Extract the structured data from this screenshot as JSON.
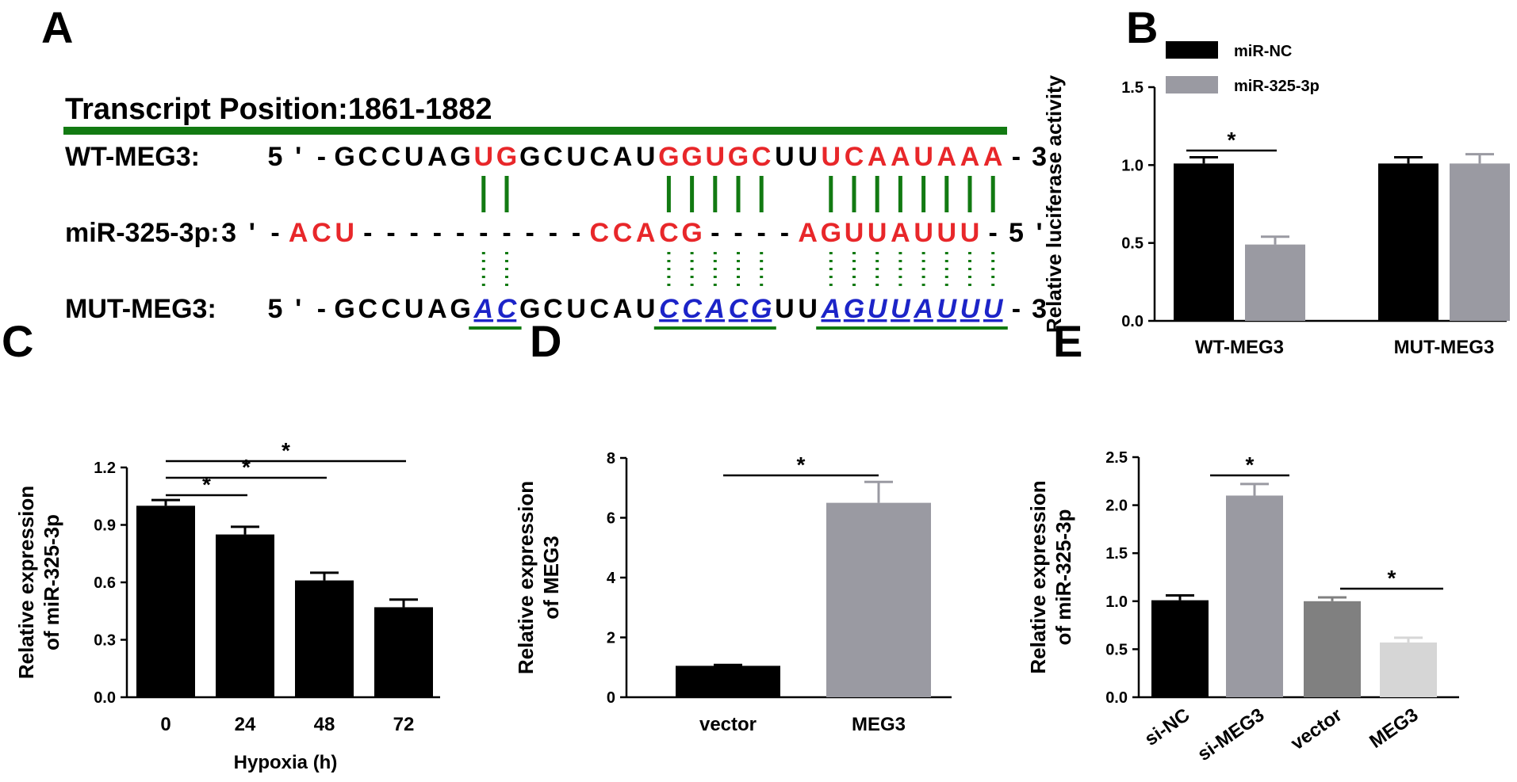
{
  "panels": {
    "a": "A",
    "b": "B",
    "c": "C",
    "d": "D",
    "e": "E"
  },
  "colors": {
    "red": "#e8272a",
    "blue": "#1c24c8",
    "green": "#127a12",
    "black": "#000000",
    "gray": "#9a9aa2",
    "darkgray": "#808080",
    "lightgray": "#d6d6d6"
  },
  "sequence": {
    "title": "Transcript Position:1861-1882",
    "wt": {
      "label": "WT-MEG3:",
      "text": "5'-GCCUAGUGGCUCAUGGUGCUUUCAAUAAA-3'"
    },
    "mir": {
      "label": "miR-325-3p:",
      "text": "3'-ACU----------CCACG----AGUUAUUU-5'"
    },
    "mut": {
      "label": "MUT-MEG3:",
      "text": "5'-GCCUAGACGCUCAUCCACGUUAGUUAUUU-3'"
    }
  },
  "chart_data": [
    {
      "panel": "B",
      "type": "bar",
      "categories": [
        "WT-MEG3",
        "MUT-MEG3"
      ],
      "series": [
        {
          "name": "miR-NC",
          "values": [
            1.01,
            1.01
          ],
          "errors": [
            0.04,
            0.04
          ]
        },
        {
          "name": "miR-325-3p",
          "values": [
            0.49,
            1.01
          ],
          "errors": [
            0.05,
            0.06
          ]
        }
      ],
      "xlabel": "",
      "ylabel": "Relative luciferase activity",
      "ylim": [
        0,
        1.5
      ],
      "yticks": [
        "0.0",
        "0.5",
        "1.0",
        "1.5"
      ],
      "legend": "top-left",
      "significance": "*"
    },
    {
      "panel": "C",
      "type": "bar",
      "categories": [
        "0",
        "24",
        "48",
        "72"
      ],
      "values": [
        1.0,
        0.85,
        0.61,
        0.47
      ],
      "errors": [
        0.03,
        0.04,
        0.04,
        0.04
      ],
      "xlabel": "Hypoxia (h)",
      "ylabel": "Relative expression of miR-325-3p",
      "ylim": [
        0,
        1.2
      ],
      "yticks": [
        "0.0",
        "0.3",
        "0.6",
        "0.9",
        "1.2"
      ],
      "significance": "*"
    },
    {
      "panel": "D",
      "type": "bar",
      "categories": [
        "vector",
        "MEG3"
      ],
      "values": [
        1.05,
        6.5
      ],
      "errors": [
        0.03,
        0.7
      ],
      "xlabel": "",
      "ylabel": "Relative expression of MEG3",
      "ylim": [
        0,
        8
      ],
      "yticks": [
        "0",
        "2",
        "4",
        "6",
        "8"
      ],
      "significance": "*"
    },
    {
      "panel": "E",
      "type": "bar",
      "categories": [
        "si-NC",
        "si-MEG3",
        "vector",
        "MEG3"
      ],
      "values": [
        1.01,
        2.1,
        1.0,
        0.57
      ],
      "errors": [
        0.05,
        0.12,
        0.04,
        0.05
      ],
      "xlabel": "",
      "ylabel": "Relative expression of miR-325-3p",
      "ylim": [
        0,
        2.5
      ],
      "yticks": [
        "0.0",
        "0.5",
        "1.0",
        "1.5",
        "2.0",
        "2.5"
      ],
      "significance": "*"
    }
  ]
}
